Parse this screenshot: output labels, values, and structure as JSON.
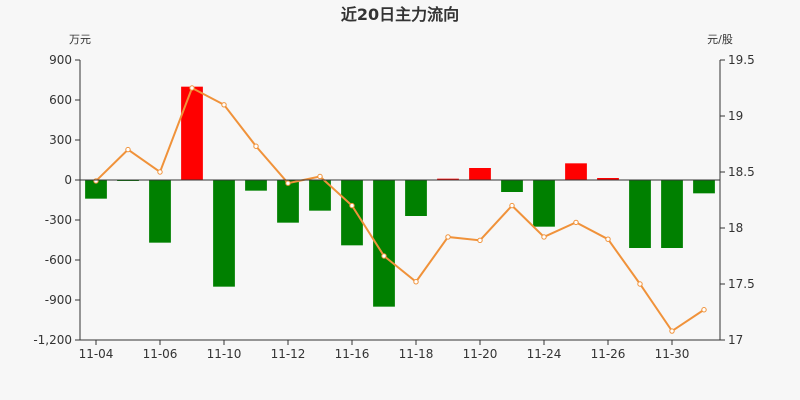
{
  "chart_data": {
    "type": "bar+line",
    "title": "近20日主力流向",
    "left_axis": {
      "unit": "万元",
      "ticks": [
        "900",
        "600",
        "300",
        "0",
        "-300",
        "-600",
        "-900",
        "-1,200"
      ],
      "ylim": [
        -1200,
        900
      ]
    },
    "right_axis": {
      "unit": "元/股",
      "ticks": [
        "19.5",
        "19",
        "18.5",
        "18",
        "17.5",
        "17"
      ],
      "ylim": [
        17,
        19.5
      ]
    },
    "x_tick_labels": [
      "11-04",
      "11-06",
      "11-10",
      "11-12",
      "11-16",
      "11-18",
      "11-20",
      "11-24",
      "11-26",
      "11-30"
    ],
    "dates": [
      "11-04",
      "11-05",
      "11-06",
      "11-07",
      "11-10",
      "11-11",
      "11-12",
      "11-13",
      "11-16",
      "11-17",
      "11-18",
      "11-19",
      "11-20",
      "11-23",
      "11-24",
      "11-25",
      "11-26",
      "11-27",
      "11-30",
      "12-01"
    ],
    "series": [
      {
        "kind": "bar",
        "values": [
          -140,
          -5,
          -470,
          700,
          -800,
          -80,
          -320,
          -230,
          -490,
          -950,
          -270,
          10,
          90,
          -90,
          -350,
          125,
          15,
          -510,
          -510,
          -100
        ],
        "colors": {
          "positive": "#ff0000",
          "negative": "#008000"
        }
      },
      {
        "kind": "line",
        "values": [
          18.42,
          18.7,
          18.5,
          19.25,
          19.1,
          18.73,
          18.4,
          18.46,
          18.2,
          17.75,
          17.52,
          17.92,
          17.89,
          18.2,
          17.92,
          18.05,
          17.9,
          17.5,
          17.08,
          17.27
        ],
        "color": "#f0923a"
      }
    ]
  }
}
